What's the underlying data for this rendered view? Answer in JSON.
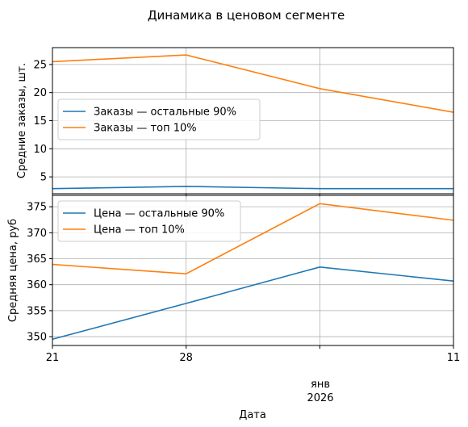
{
  "figure": {
    "title": "Динамика в ценовом сегменте",
    "xlabel": "Дата"
  },
  "chart_data": [
    {
      "type": "line",
      "ylabel": "Средние заказы, шт.",
      "x": [
        "2025-12-21",
        "2025-12-28",
        "2026-01-04",
        "2026-01-11"
      ],
      "xlim": [
        "2025-12-21",
        "2026-01-11"
      ],
      "ylim": [
        2.0,
        28.0
      ],
      "yticks": [
        5,
        10,
        15,
        20,
        25
      ],
      "grid": true,
      "legend_position": "center-left",
      "series": [
        {
          "name": "Заказы — остальные 90%",
          "values": [
            2.9,
            3.3,
            2.9,
            2.9
          ]
        },
        {
          "name": "Заказы — топ 10%",
          "values": [
            25.5,
            26.7,
            20.7,
            16.5
          ]
        }
      ]
    },
    {
      "type": "line",
      "ylabel": "Средняя цена, руб",
      "x": [
        "2025-12-21",
        "2025-12-28",
        "2026-01-04",
        "2026-01-11"
      ],
      "xlim": [
        "2025-12-21",
        "2026-01-11"
      ],
      "ylim": [
        348.3,
        377.2
      ],
      "yticks": [
        350,
        355,
        360,
        365,
        370,
        375
      ],
      "grid": true,
      "legend_position": "top-left",
      "series": [
        {
          "name": "Цена — остальные 90%",
          "values": [
            349.5,
            356.4,
            363.4,
            360.7
          ]
        },
        {
          "name": "Цена — топ 10%",
          "values": [
            363.9,
            362.1,
            375.6,
            372.4
          ]
        }
      ]
    }
  ],
  "xaxis": {
    "ticks": [
      {
        "x": "2025-12-21",
        "label": "21"
      },
      {
        "x": "2025-12-28",
        "label": "28"
      },
      {
        "x": "2026-01-04",
        "label": ""
      },
      {
        "x": "2026-01-11",
        "label": "11"
      }
    ],
    "secondary_label_line1": "янв",
    "secondary_label_line2": "2026"
  },
  "colors": {
    "series1": "#1f77b4",
    "series2": "#ff7f0e",
    "grid": "#b0b0b0",
    "axis": "#000000"
  }
}
